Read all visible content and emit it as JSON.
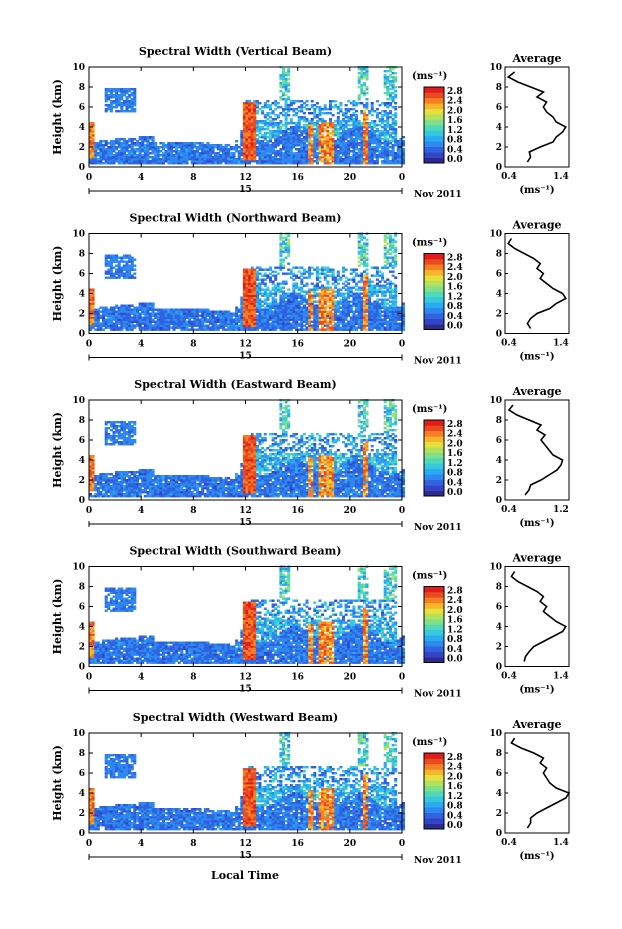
{
  "figure": {
    "xlabel": "Local Time",
    "month_label": "Nov 2011",
    "day_label": "15",
    "colorbar_unit": "(ms⁻¹)",
    "colorbar_ticks": [
      "0.0",
      "0.4",
      "0.8",
      "1.2",
      "1.6",
      "2.0",
      "2.4",
      "2.8"
    ],
    "colors": [
      "#2b2b8f",
      "#3344c8",
      "#2f63e0",
      "#2d88ef",
      "#2aaaf0",
      "#35c9e0",
      "#4fd9b8",
      "#7fe089",
      "#b5e05a",
      "#e6e03c",
      "#f7b52c",
      "#f57f24",
      "#ea4a20",
      "#e21b1b"
    ],
    "profile_title": "Average",
    "profile_xlabel": "(ms⁻¹)"
  },
  "chart_data": [
    {
      "type": "heatmap",
      "title": "Spectral Width (Vertical Beam)",
      "ylabel": "Height (km)",
      "xlim": [
        0,
        24
      ],
      "ylim": [
        0,
        10
      ],
      "x_ticks": [
        "0",
        "4",
        "8",
        "12",
        "16",
        "20",
        "0"
      ],
      "y_ticks": [
        "0",
        "2",
        "4",
        "6",
        "8",
        "10"
      ],
      "seed": 11,
      "profile": {
        "xlim": [
          0.4,
          1.4
        ],
        "x_ticks": [
          "0.4",
          "1.4"
        ],
        "heights": [
          0.5,
          1,
          1.5,
          2,
          2.5,
          3,
          3.5,
          4,
          4.5,
          5,
          5.5,
          6,
          6.5,
          7,
          7.5,
          8,
          8.5,
          9,
          9.5
        ],
        "values": [
          0.75,
          0.8,
          0.78,
          0.95,
          1.15,
          1.2,
          1.3,
          1.35,
          1.2,
          1.15,
          1.05,
          1.0,
          1.05,
          0.9,
          1.0,
          0.8,
          0.6,
          0.45,
          0.55
        ]
      }
    },
    {
      "type": "heatmap",
      "title": "Spectral Width (Northward Beam)",
      "ylabel": "Height (km)",
      "xlim": [
        0,
        24
      ],
      "ylim": [
        0,
        10
      ],
      "x_ticks": [
        "0",
        "4",
        "8",
        "12",
        "16",
        "20",
        "0"
      ],
      "y_ticks": [
        "0",
        "2",
        "4",
        "6",
        "8",
        "10"
      ],
      "seed": 23,
      "profile": {
        "xlim": [
          0.4,
          1.4
        ],
        "x_ticks": [
          "0.4",
          "1.4"
        ],
        "heights": [
          0.5,
          1,
          1.5,
          2,
          2.5,
          3,
          3.5,
          4,
          4.5,
          5,
          5.5,
          6,
          6.5,
          7,
          7.5,
          8,
          8.5,
          9,
          9.5
        ],
        "values": [
          0.8,
          0.75,
          0.8,
          0.9,
          1.1,
          1.2,
          1.35,
          1.3,
          1.15,
          1.05,
          0.95,
          1.0,
          0.9,
          0.95,
          0.85,
          0.7,
          0.55,
          0.45,
          0.5
        ]
      }
    },
    {
      "type": "heatmap",
      "title": "Spectral Width (Eastward Beam)",
      "ylabel": "Height (km)",
      "xlim": [
        0,
        24
      ],
      "ylim": [
        0,
        10
      ],
      "x_ticks": [
        "0",
        "4",
        "8",
        "12",
        "16",
        "20",
        "0"
      ],
      "y_ticks": [
        "0",
        "2",
        "4",
        "6",
        "8",
        "10"
      ],
      "seed": 37,
      "profile": {
        "xlim": [
          0.4,
          1.2
        ],
        "x_ticks": [
          "0.4",
          "1.2"
        ],
        "heights": [
          0.5,
          1,
          1.5,
          2,
          2.5,
          3,
          3.5,
          4,
          4.5,
          5,
          5.5,
          6,
          6.5,
          7,
          7.5,
          8,
          8.5,
          9,
          9.5
        ],
        "values": [
          0.65,
          0.7,
          0.72,
          0.85,
          0.95,
          1.05,
          1.1,
          1.12,
          1.0,
          0.95,
          0.9,
          0.85,
          0.9,
          0.8,
          0.85,
          0.7,
          0.55,
          0.45,
          0.5
        ]
      }
    },
    {
      "type": "heatmap",
      "title": "Spectral Width (Southward Beam)",
      "ylabel": "Height (km)",
      "xlim": [
        0,
        24
      ],
      "ylim": [
        0,
        10
      ],
      "x_ticks": [
        "0",
        "4",
        "8",
        "12",
        "16",
        "20",
        "0"
      ],
      "y_ticks": [
        "0",
        "2",
        "4",
        "6",
        "8",
        "10"
      ],
      "seed": 53,
      "profile": {
        "xlim": [
          0.4,
          1.4
        ],
        "x_ticks": [
          "0.4",
          "1.4"
        ],
        "heights": [
          0.5,
          1,
          1.5,
          2,
          2.5,
          3,
          3.5,
          4,
          4.5,
          5,
          5.5,
          6,
          6.5,
          7,
          7.5,
          8,
          8.5,
          9,
          9.5
        ],
        "values": [
          0.7,
          0.72,
          0.78,
          0.85,
          1.0,
          1.15,
          1.3,
          1.35,
          1.2,
          1.1,
          1.0,
          1.05,
          0.95,
          1.0,
          0.9,
          0.75,
          0.6,
          0.5,
          0.55
        ]
      }
    },
    {
      "type": "heatmap",
      "title": "Spectral Width (Westward Beam)",
      "ylabel": "Height (km)",
      "xlim": [
        0,
        24
      ],
      "ylim": [
        0,
        10
      ],
      "x_ticks": [
        "0",
        "4",
        "8",
        "12",
        "16",
        "20",
        "0"
      ],
      "y_ticks": [
        "0",
        "2",
        "4",
        "6",
        "8",
        "10"
      ],
      "seed": 71,
      "profile": {
        "xlim": [
          0.4,
          1.4
        ],
        "x_ticks": [
          "0.4",
          "1.4"
        ],
        "heights": [
          0.5,
          1,
          1.5,
          2,
          2.5,
          3,
          3.5,
          4,
          4.5,
          5,
          5.5,
          6,
          6.5,
          7,
          7.5,
          8,
          8.5,
          9,
          9.5
        ],
        "values": [
          0.75,
          0.8,
          0.8,
          0.9,
          1.05,
          1.2,
          1.35,
          1.4,
          1.2,
          1.1,
          1.05,
          1.0,
          1.05,
          0.95,
          1.0,
          0.85,
          0.65,
          0.5,
          0.55
        ]
      }
    }
  ]
}
